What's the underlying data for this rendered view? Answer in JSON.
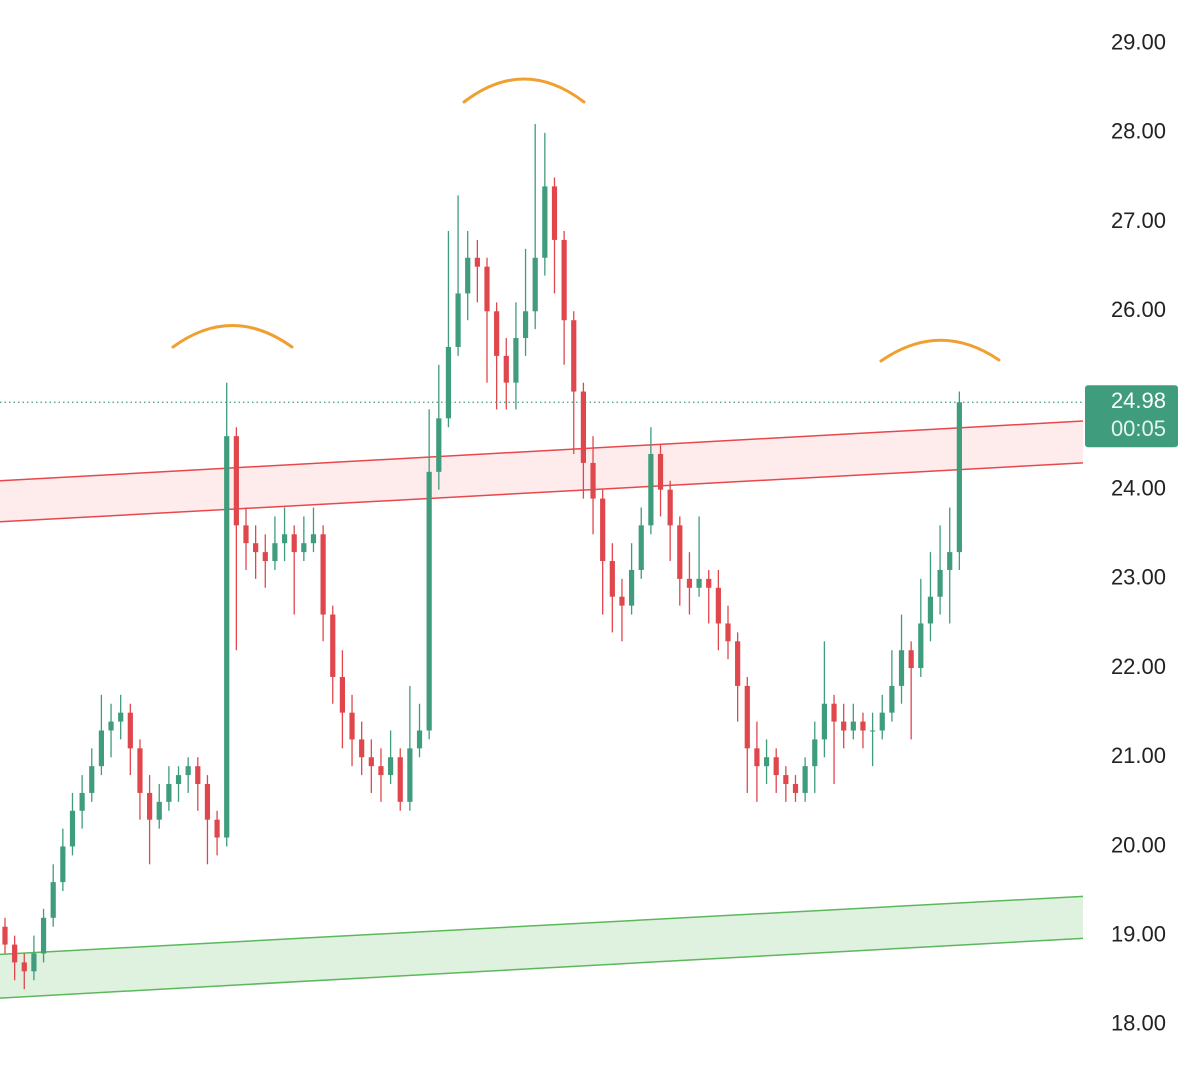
{
  "chart_data": {
    "type": "candlestick",
    "ylim": [
      17.46,
      29.49
    ],
    "yticks": [
      {
        "value": 18,
        "label": "18.00"
      },
      {
        "value": 19,
        "label": "19.00"
      },
      {
        "value": 20,
        "label": "20.00"
      },
      {
        "value": 21,
        "label": "21.00"
      },
      {
        "value": 22,
        "label": "22.00"
      },
      {
        "value": 23,
        "label": "23.00"
      },
      {
        "value": 24,
        "label": "24.00"
      },
      {
        "value": 25,
        "label": "25.00"
      },
      {
        "value": 26,
        "label": "26.00"
      },
      {
        "value": 27,
        "label": "27.00"
      },
      {
        "value": 28,
        "label": "28.00"
      },
      {
        "value": 29,
        "label": "29.00"
      }
    ],
    "up_color": "#3f9c7d",
    "down_color": "#e0474c",
    "countdown": "00:05",
    "open": [
      19.1,
      18.9,
      18.7,
      18.6,
      18.8,
      19.2,
      19.6,
      20.0,
      20.4,
      20.6,
      20.9,
      21.3,
      21.4,
      21.5,
      21.1,
      20.6,
      20.3,
      20.5,
      20.7,
      20.8,
      20.9,
      20.7,
      20.3,
      20.1,
      24.6,
      23.6,
      23.4,
      23.3,
      23.2,
      23.4,
      23.5,
      23.3,
      23.4,
      23.5,
      22.6,
      21.9,
      21.5,
      21.2,
      21.0,
      20.9,
      20.8,
      21.0,
      20.5,
      21.1,
      21.3,
      24.2,
      24.8,
      25.6,
      26.2,
      26.6,
      26.5,
      26.0,
      25.5,
      25.2,
      25.7,
      26.0,
      26.6,
      27.4,
      26.8,
      25.9,
      25.1,
      24.3,
      23.9,
      23.2,
      22.8,
      22.7,
      23.1,
      23.6,
      24.4,
      24.0,
      23.6,
      23.0,
      22.9,
      23.0,
      22.9,
      22.5,
      22.3,
      21.8,
      21.1,
      20.9,
      21.0,
      20.8,
      20.7,
      20.6,
      20.9,
      21.2,
      21.6,
      21.4,
      21.3,
      21.4,
      21.3,
      21.3,
      21.5,
      21.8,
      22.2,
      22.0,
      22.5,
      22.8,
      23.1,
      23.3
    ],
    "high": [
      19.2,
      19.0,
      18.8,
      19.0,
      19.3,
      19.8,
      20.2,
      20.6,
      20.8,
      21.1,
      21.7,
      21.6,
      21.7,
      21.6,
      21.2,
      20.8,
      20.7,
      20.9,
      20.9,
      21.0,
      21.0,
      20.8,
      20.4,
      25.2,
      24.7,
      23.8,
      23.6,
      23.5,
      23.7,
      23.8,
      23.6,
      23.7,
      23.8,
      23.6,
      22.7,
      22.2,
      21.7,
      21.4,
      21.2,
      21.1,
      21.3,
      21.1,
      21.8,
      21.6,
      24.9,
      25.4,
      26.9,
      27.3,
      26.9,
      26.8,
      26.6,
      26.1,
      25.7,
      26.1,
      26.7,
      28.1,
      28.0,
      27.5,
      26.9,
      26.0,
      25.2,
      24.6,
      24.0,
      23.4,
      23.0,
      23.4,
      23.8,
      24.7,
      24.5,
      24.1,
      23.7,
      23.3,
      23.7,
      23.1,
      23.1,
      22.7,
      22.4,
      21.9,
      21.4,
      21.2,
      21.1,
      20.9,
      20.8,
      21.0,
      21.4,
      22.3,
      21.7,
      21.6,
      21.6,
      21.5,
      21.5,
      21.7,
      22.2,
      22.6,
      22.3,
      23.0,
      23.3,
      23.6,
      23.8,
      25.1
    ],
    "low": [
      18.8,
      18.5,
      18.4,
      18.5,
      18.7,
      19.1,
      19.5,
      19.9,
      20.2,
      20.5,
      20.8,
      21.0,
      21.2,
      20.8,
      20.3,
      19.8,
      20.2,
      20.4,
      20.5,
      20.6,
      20.4,
      19.8,
      19.9,
      20.0,
      22.2,
      23.1,
      23.0,
      22.9,
      23.1,
      23.2,
      22.6,
      23.2,
      23.3,
      22.3,
      21.6,
      21.1,
      20.9,
      20.8,
      20.6,
      20.5,
      20.7,
      20.4,
      20.4,
      21.0,
      21.2,
      24.0,
      24.7,
      25.5,
      25.9,
      26.1,
      25.2,
      24.9,
      24.9,
      24.9,
      25.5,
      25.8,
      26.4,
      26.2,
      25.4,
      24.4,
      23.9,
      23.5,
      22.6,
      22.4,
      22.3,
      22.6,
      23.0,
      23.5,
      23.7,
      23.2,
      22.7,
      22.6,
      22.8,
      22.5,
      22.2,
      22.1,
      21.4,
      20.6,
      20.5,
      20.7,
      20.6,
      20.5,
      20.5,
      20.5,
      20.6,
      21.0,
      20.7,
      21.1,
      21.2,
      21.1,
      20.9,
      21.2,
      21.4,
      21.6,
      21.2,
      21.9,
      22.3,
      22.6,
      22.5,
      23.1
    ],
    "close": [
      18.9,
      18.7,
      18.6,
      18.8,
      19.2,
      19.6,
      20.0,
      20.4,
      20.6,
      20.9,
      21.3,
      21.4,
      21.5,
      21.1,
      20.6,
      20.3,
      20.5,
      20.7,
      20.8,
      20.9,
      20.7,
      20.3,
      20.1,
      24.6,
      23.6,
      23.4,
      23.3,
      23.2,
      23.4,
      23.5,
      23.3,
      23.4,
      23.5,
      22.6,
      21.9,
      21.5,
      21.2,
      21.0,
      20.9,
      20.8,
      21.0,
      20.5,
      21.1,
      21.3,
      24.2,
      24.8,
      25.6,
      26.2,
      26.6,
      26.5,
      26.0,
      25.5,
      25.2,
      25.7,
      26.0,
      26.6,
      27.4,
      26.8,
      25.9,
      25.1,
      24.3,
      23.9,
      23.2,
      22.8,
      22.7,
      23.1,
      23.6,
      24.4,
      24.0,
      23.6,
      23.0,
      22.9,
      23.0,
      22.9,
      22.5,
      22.3,
      21.8,
      21.1,
      20.9,
      21.0,
      20.8,
      20.7,
      20.6,
      20.9,
      21.2,
      21.6,
      21.4,
      21.3,
      21.4,
      21.3,
      21.3,
      21.5,
      21.8,
      22.2,
      22.0,
      22.5,
      22.8,
      23.1,
      23.3,
      24.98
    ],
    "zones": [
      {
        "color": "#e8474c",
        "fill": "rgba(242,54,69,0.10)",
        "upper": [
          24.1,
          24.77
        ],
        "lower": [
          23.64,
          24.3
        ]
      },
      {
        "color": "#5cb85c",
        "fill": "rgba(76,175,80,0.18)",
        "upper": [
          18.79,
          19.44
        ],
        "lower": [
          18.3,
          18.97
        ]
      }
    ]
  }
}
